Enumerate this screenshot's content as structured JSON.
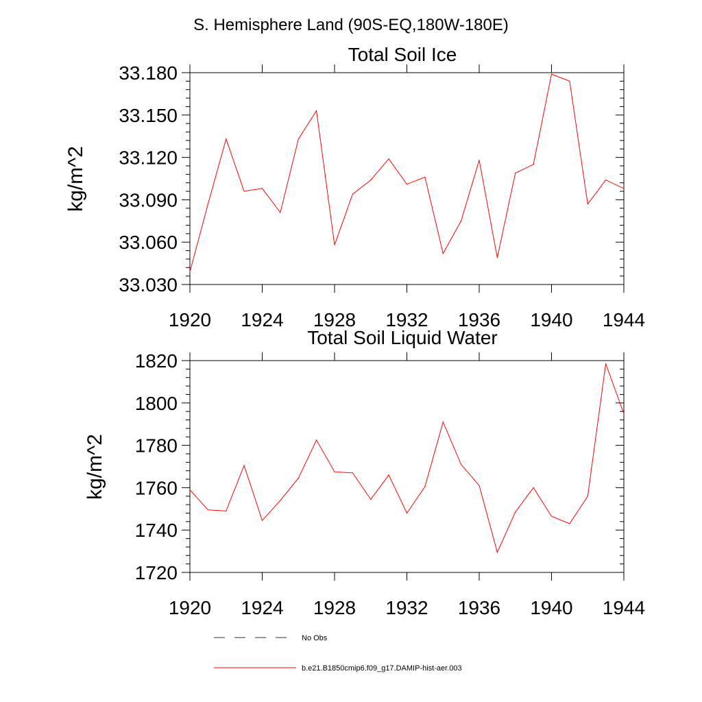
{
  "main_title": "S. Hemisphere Land (90S-EQ,180W-180E)",
  "colors": {
    "series": "#ff0000",
    "no_obs": "#1f2a6b",
    "axis": "#000000"
  },
  "chart_data": [
    {
      "type": "line",
      "title": "Total Soil Ice",
      "xlabel": "",
      "ylabel": "kg/m^2",
      "xlim": [
        1920,
        1944
      ],
      "ylim": [
        33.03,
        33.18
      ],
      "x_ticks": [
        "1920",
        "1924",
        "1928",
        "1932",
        "1936",
        "1940",
        "1944"
      ],
      "y_ticks": [
        "33.030",
        "33.060",
        "33.090",
        "33.120",
        "33.150",
        "33.180"
      ],
      "x": [
        1920,
        1921,
        1922,
        1923,
        1924,
        1925,
        1926,
        1927,
        1928,
        1929,
        1930,
        1931,
        1932,
        1933,
        1934,
        1935,
        1936,
        1937,
        1938,
        1939,
        1940,
        1941,
        1942,
        1943,
        1944
      ],
      "series": [
        {
          "name": "b.e21.B1850cmip6.f09_g17.DAMIP-hist-aer.003",
          "values": [
            33.039,
            33.087,
            33.133,
            33.096,
            33.098,
            33.081,
            33.133,
            33.153,
            33.058,
            33.094,
            33.104,
            33.119,
            33.101,
            33.106,
            33.052,
            33.075,
            33.118,
            33.049,
            33.109,
            33.115,
            33.179,
            33.174,
            33.087,
            33.104,
            33.098
          ]
        }
      ]
    },
    {
      "type": "line",
      "title": "Total Soil Liquid Water",
      "xlabel": "",
      "ylabel": "kg/m^2",
      "xlim": [
        1920,
        1944
      ],
      "ylim": [
        1720,
        1820
      ],
      "x_ticks": [
        "1920",
        "1924",
        "1928",
        "1932",
        "1936",
        "1940",
        "1944"
      ],
      "y_ticks": [
        "1720",
        "1740",
        "1760",
        "1780",
        "1800",
        "1820"
      ],
      "x": [
        1920,
        1921,
        1922,
        1923,
        1924,
        1925,
        1926,
        1927,
        1928,
        1929,
        1930,
        1931,
        1932,
        1933,
        1934,
        1935,
        1936,
        1937,
        1938,
        1939,
        1940,
        1941,
        1942,
        1943,
        1944
      ],
      "series": [
        {
          "name": "b.e21.B1850cmip6.f09_g17.DAMIP-hist-aer.003",
          "values": [
            1759,
            1749.5,
            1749,
            1770.5,
            1744.5,
            1754,
            1764.5,
            1782.5,
            1767.5,
            1767,
            1754.5,
            1766,
            1748,
            1760.5,
            1791,
            1771,
            1761,
            1729.5,
            1748.5,
            1760,
            1746.5,
            1743,
            1756,
            1818.5,
            1795
          ]
        }
      ]
    }
  ],
  "legend": {
    "placement": "bottom",
    "entries": [
      {
        "label": "No Obs",
        "style": "dashed"
      },
      {
        "label": "b.e21.B1850cmip6.f09_g17.DAMIP-hist-aer.003",
        "style": "solid"
      }
    ]
  }
}
